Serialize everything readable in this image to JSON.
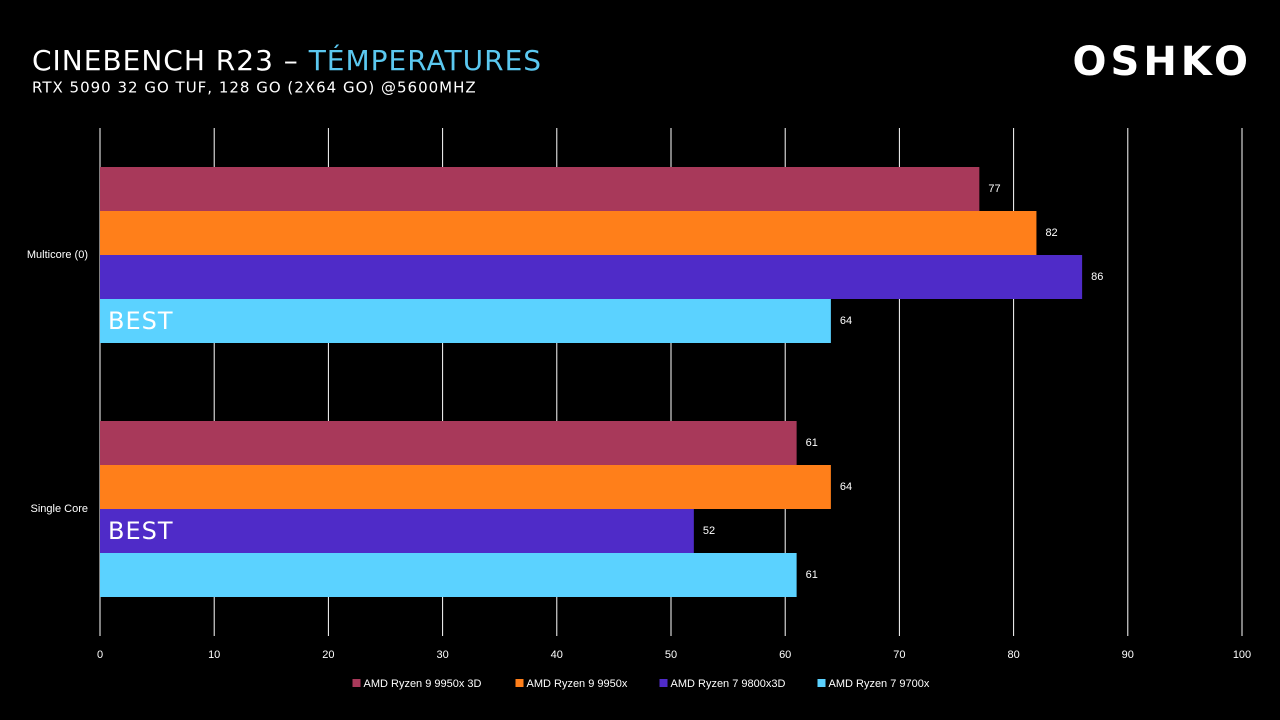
{
  "chart_data": {
    "type": "hbar",
    "title": "CINEBENCH R23 –",
    "title_highlight": "TÉMPERATURES",
    "subtitle": "RTX 5090 32 GO TUF, 128 GO (2X64 GO) @5600MHZ",
    "logo": "OSHKO",
    "categories": [
      "Multicore (0)",
      "Single Core"
    ],
    "series": [
      {
        "name": "AMD Ryzen 9 9950x 3D",
        "color": "#a8395a",
        "values": [
          77,
          61
        ]
      },
      {
        "name": "AMD Ryzen 9 9950x",
        "color": "#ff7f1a",
        "values": [
          82,
          64
        ]
      },
      {
        "name": "AMD Ryzen 7 9800x3D",
        "color": "#4f2bc8",
        "values": [
          86,
          52
        ],
        "annotations": [
          null,
          "BEST"
        ]
      },
      {
        "name": "AMD Ryzen 7 9700x",
        "color": "#5bd2ff",
        "values": [
          64,
          61
        ],
        "annotations": [
          "BEST",
          null
        ]
      }
    ],
    "xlim": [
      0,
      100
    ],
    "xticks": [
      0,
      10,
      20,
      30,
      40,
      50,
      60,
      70,
      80,
      90,
      100
    ],
    "grid": true
  }
}
